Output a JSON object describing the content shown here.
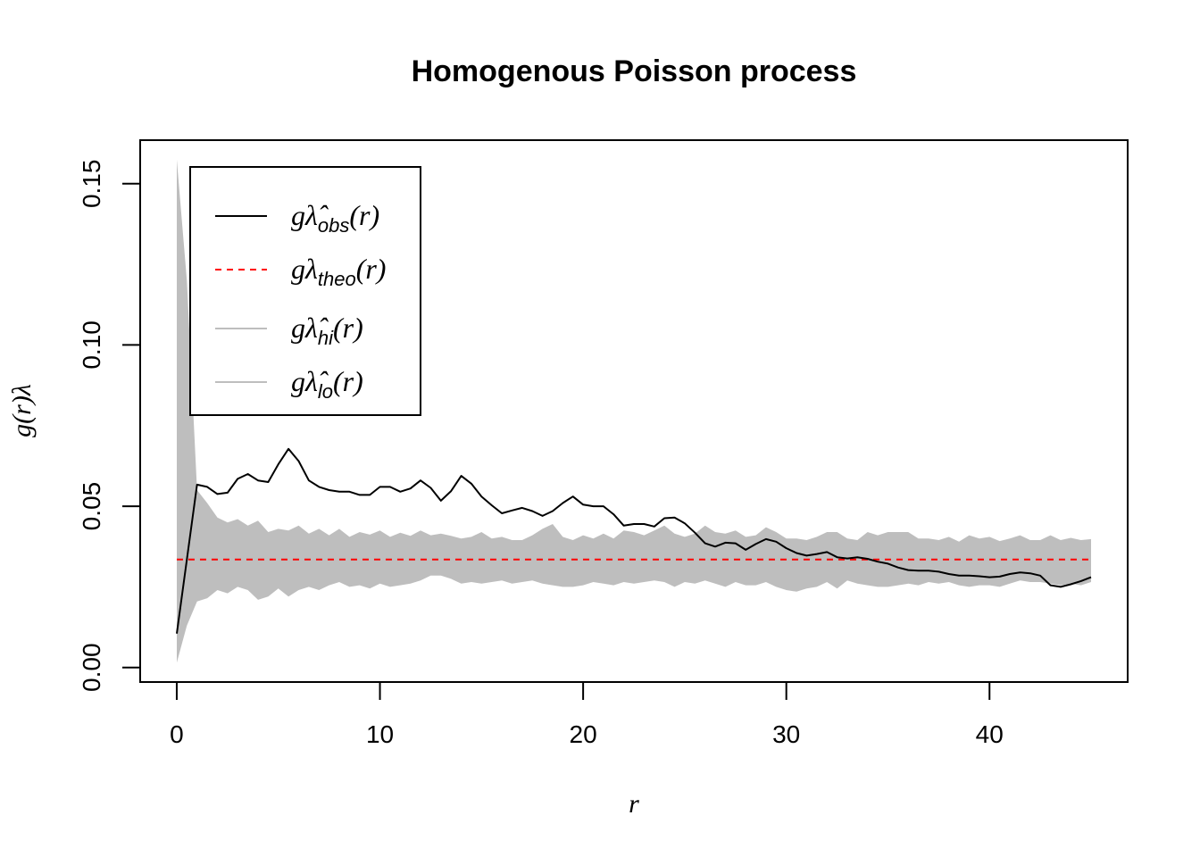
{
  "chart_data": {
    "type": "line",
    "title": "Homogenous Poisson process",
    "xlabel": "r",
    "ylabel": "g(r)λ",
    "xlim": [
      -1.8,
      46.8
    ],
    "ylim": [
      -0.0045,
      0.1635
    ],
    "xticks": [
      0,
      10,
      20,
      30,
      40
    ],
    "xtick_labels": [
      "0",
      "10",
      "20",
      "30",
      "40"
    ],
    "yticks": [
      0.0,
      0.05,
      0.1,
      0.15
    ],
    "ytick_labels": [
      "0.00",
      "0.05",
      "0.10",
      "0.15"
    ],
    "grid": false,
    "legend": {
      "placement": "top-left",
      "entries": [
        {
          "main": "gλ̂",
          "sub": "obs",
          "tail": "(r)",
          "color": "#000000",
          "dash": "solid"
        },
        {
          "main": "gλ",
          "sub": "theo",
          "tail": "(r)",
          "color": "#ff0000",
          "dash": "dashed"
        },
        {
          "main": "gλ̂",
          "sub": "hi",
          "tail": "(r)",
          "color": "#bebebe",
          "dash": "solid"
        },
        {
          "main": "gλ̂",
          "sub": "lo",
          "tail": "(r)",
          "color": "#bebebe",
          "dash": "solid"
        }
      ]
    },
    "series": [
      {
        "color": "#000000",
        "x": [
          0,
          0.5,
          1,
          1.5,
          2,
          2.5,
          3,
          3.5,
          4,
          4.5,
          5,
          5.5,
          6,
          6.5,
          7,
          7.5,
          8,
          8.5,
          9,
          9.5,
          10,
          10.5,
          11,
          11.5,
          12,
          12.5,
          13,
          13.5,
          14,
          14.5,
          15,
          15.5,
          16,
          16.5,
          17,
          17.5,
          18,
          18.5,
          19,
          19.5,
          20,
          20.5,
          21,
          21.5,
          22,
          22.5,
          23,
          23.5,
          24,
          24.5,
          25,
          25.5,
          26,
          26.5,
          27,
          27.5,
          28,
          28.5,
          29,
          29.5,
          30,
          30.5,
          31,
          31.5,
          32,
          32.5,
          33,
          33.5,
          34,
          34.5,
          35,
          35.5,
          36,
          36.5,
          37,
          37.5,
          38,
          38.5,
          39,
          39.5,
          40,
          40.5,
          41,
          41.5,
          42,
          42.5,
          43,
          43.5,
          44,
          44.5,
          45
        ],
        "values": [
          0.0105,
          0.0335,
          0.0567,
          0.056,
          0.0538,
          0.0542,
          0.0585,
          0.06,
          0.058,
          0.0575,
          0.063,
          0.0678,
          0.064,
          0.058,
          0.056,
          0.055,
          0.0545,
          0.0545,
          0.0535,
          0.0535,
          0.056,
          0.056,
          0.0545,
          0.0555,
          0.058,
          0.0557,
          0.0517,
          0.0547,
          0.0594,
          0.057,
          0.053,
          0.0503,
          0.0478,
          0.0487,
          0.0495,
          0.0485,
          0.047,
          0.0485,
          0.051,
          0.053,
          0.0505,
          0.05,
          0.05,
          0.0475,
          0.044,
          0.0445,
          0.0445,
          0.0437,
          0.0463,
          0.0465,
          0.0447,
          0.0418,
          0.0385,
          0.0375,
          0.0387,
          0.0385,
          0.0365,
          0.0383,
          0.0398,
          0.039,
          0.037,
          0.0355,
          0.0347,
          0.0352,
          0.0358,
          0.0342,
          0.0338,
          0.0342,
          0.0337,
          0.0328,
          0.0322,
          0.031,
          0.0302,
          0.03,
          0.03,
          0.0297,
          0.029,
          0.0285,
          0.0285,
          0.0283,
          0.028,
          0.0282,
          0.029,
          0.0295,
          0.0292,
          0.0285,
          0.0255,
          0.025,
          0.0258,
          0.0268,
          0.028
        ]
      },
      {
        "color": "#ff0000",
        "x": [
          0,
          45
        ],
        "values": [
          0.0335,
          0.0335
        ]
      },
      {
        "color": "#bebebe",
        "x": [
          0,
          0.5,
          1,
          1.5,
          2,
          2.5,
          3,
          3.5,
          4,
          4.5,
          5,
          5.5,
          6,
          6.5,
          7,
          7.5,
          8,
          8.5,
          9,
          9.5,
          10,
          10.5,
          11,
          11.5,
          12,
          12.5,
          13,
          13.5,
          14,
          14.5,
          15,
          15.5,
          16,
          16.5,
          17,
          17.5,
          18,
          18.5,
          19,
          19.5,
          20,
          20.5,
          21,
          21.5,
          22,
          22.5,
          23,
          23.5,
          24,
          24.5,
          25,
          25.5,
          26,
          26.5,
          27,
          27.5,
          28,
          28.5,
          29,
          29.5,
          30,
          30.5,
          31,
          31.5,
          32,
          32.5,
          33,
          33.5,
          34,
          34.5,
          35,
          35.5,
          36,
          36.5,
          37,
          37.5,
          38,
          38.5,
          39,
          39.5,
          40,
          40.5,
          41,
          41.5,
          42,
          42.5,
          43,
          43.5,
          44,
          44.5,
          45
        ],
        "values": [
          0.1575,
          0.12,
          0.055,
          0.051,
          0.0465,
          0.045,
          0.046,
          0.044,
          0.0455,
          0.042,
          0.043,
          0.0425,
          0.044,
          0.0415,
          0.043,
          0.041,
          0.043,
          0.0405,
          0.042,
          0.0412,
          0.0425,
          0.0405,
          0.0418,
          0.0408,
          0.0425,
          0.041,
          0.0415,
          0.0408,
          0.04,
          0.0405,
          0.042,
          0.04,
          0.0405,
          0.0395,
          0.0395,
          0.041,
          0.043,
          0.0445,
          0.0405,
          0.0395,
          0.041,
          0.04,
          0.0415,
          0.04,
          0.0425,
          0.042,
          0.041,
          0.0425,
          0.044,
          0.0415,
          0.0405,
          0.0415,
          0.044,
          0.042,
          0.0415,
          0.0425,
          0.0405,
          0.041,
          0.0435,
          0.042,
          0.04,
          0.04,
          0.0395,
          0.0405,
          0.042,
          0.042,
          0.04,
          0.0395,
          0.042,
          0.041,
          0.042,
          0.042,
          0.042,
          0.04,
          0.04,
          0.0395,
          0.0405,
          0.039,
          0.041,
          0.04,
          0.0405,
          0.0392,
          0.04,
          0.041,
          0.0395,
          0.0395,
          0.041,
          0.0395,
          0.0402,
          0.0395,
          0.0398
        ]
      },
      {
        "color": "#bebebe",
        "x": [
          0,
          0.5,
          1,
          1.5,
          2,
          2.5,
          3,
          3.5,
          4,
          4.5,
          5,
          5.5,
          6,
          6.5,
          7,
          7.5,
          8,
          8.5,
          9,
          9.5,
          10,
          10.5,
          11,
          11.5,
          12,
          12.5,
          13,
          13.5,
          14,
          14.5,
          15,
          15.5,
          16,
          16.5,
          17,
          17.5,
          18,
          18.5,
          19,
          19.5,
          20,
          20.5,
          21,
          21.5,
          22,
          22.5,
          23,
          23.5,
          24,
          24.5,
          25,
          25.5,
          26,
          26.5,
          27,
          27.5,
          28,
          28.5,
          29,
          29.5,
          30,
          30.5,
          31,
          31.5,
          32,
          32.5,
          33,
          33.5,
          34,
          34.5,
          35,
          35.5,
          36,
          36.5,
          37,
          37.5,
          38,
          38.5,
          39,
          39.5,
          40,
          40.5,
          41,
          41.5,
          42,
          42.5,
          43,
          43.5,
          44,
          44.5,
          45
        ],
        "values": [
          0.0015,
          0.013,
          0.0205,
          0.0215,
          0.024,
          0.023,
          0.025,
          0.024,
          0.021,
          0.022,
          0.0245,
          0.022,
          0.024,
          0.025,
          0.024,
          0.0255,
          0.0265,
          0.025,
          0.0255,
          0.0245,
          0.026,
          0.025,
          0.0255,
          0.026,
          0.027,
          0.0285,
          0.0285,
          0.0275,
          0.026,
          0.0265,
          0.026,
          0.0265,
          0.027,
          0.026,
          0.0265,
          0.027,
          0.026,
          0.0255,
          0.025,
          0.025,
          0.0255,
          0.0265,
          0.026,
          0.0255,
          0.0265,
          0.026,
          0.0265,
          0.027,
          0.0265,
          0.025,
          0.0265,
          0.026,
          0.027,
          0.026,
          0.025,
          0.0265,
          0.0255,
          0.0255,
          0.0265,
          0.025,
          0.024,
          0.0235,
          0.0245,
          0.025,
          0.0265,
          0.0245,
          0.027,
          0.026,
          0.0255,
          0.025,
          0.025,
          0.0255,
          0.026,
          0.0255,
          0.0265,
          0.026,
          0.0265,
          0.0255,
          0.025,
          0.0255,
          0.0255,
          0.025,
          0.026,
          0.027,
          0.0265,
          0.0265,
          0.026,
          0.0255,
          0.026,
          0.0255,
          0.0265
        ]
      }
    ]
  }
}
